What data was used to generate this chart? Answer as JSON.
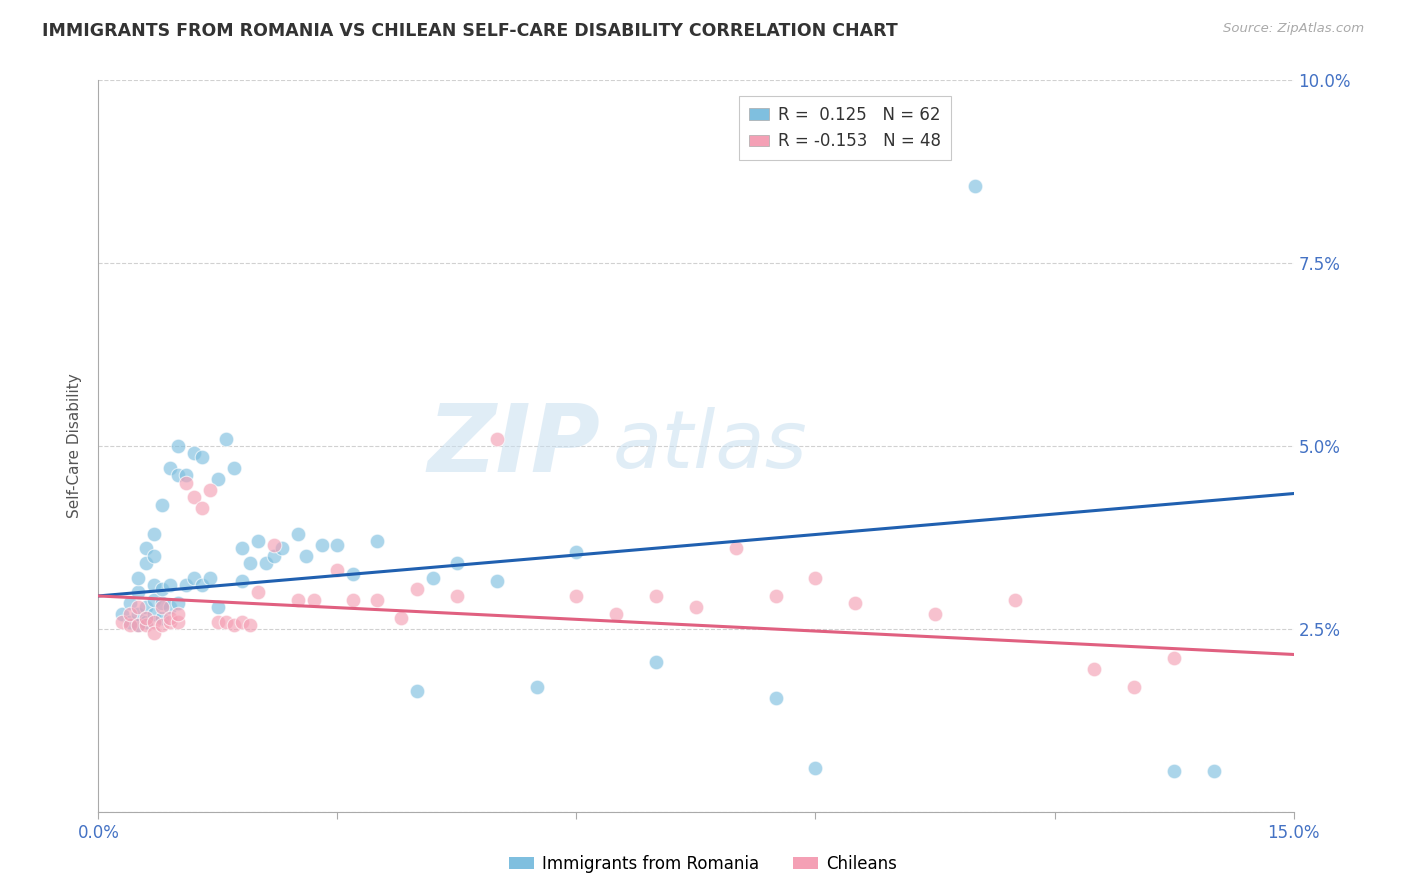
{
  "title": "IMMIGRANTS FROM ROMANIA VS CHILEAN SELF-CARE DISABILITY CORRELATION CHART",
  "source": "Source: ZipAtlas.com",
  "ylabel": "Self-Care Disability",
  "x_min": 0.0,
  "x_max": 0.15,
  "y_min": 0.0,
  "y_max": 0.1,
  "x_ticks": [
    0.0,
    0.03,
    0.06,
    0.09,
    0.12,
    0.15
  ],
  "y_ticks": [
    0.0,
    0.025,
    0.05,
    0.075,
    0.1
  ],
  "y_tick_labels": [
    "",
    "2.5%",
    "5.0%",
    "7.5%",
    "10.0%"
  ],
  "color_blue": "#7fbfdf",
  "color_pink": "#f4a0b5",
  "line_color_blue": "#2060b0",
  "line_color_pink": "#e06080",
  "grid_color": "#cccccc",
  "blue_line_y_start": 0.0295,
  "blue_line_y_end": 0.0435,
  "pink_line_y_start": 0.0295,
  "pink_line_y_end": 0.0215,
  "blue_x": [
    0.003,
    0.004,
    0.004,
    0.005,
    0.005,
    0.005,
    0.005,
    0.006,
    0.006,
    0.006,
    0.006,
    0.007,
    0.007,
    0.007,
    0.007,
    0.007,
    0.008,
    0.008,
    0.008,
    0.008,
    0.009,
    0.009,
    0.009,
    0.01,
    0.01,
    0.01,
    0.011,
    0.011,
    0.012,
    0.012,
    0.013,
    0.013,
    0.014,
    0.015,
    0.015,
    0.016,
    0.017,
    0.018,
    0.018,
    0.019,
    0.02,
    0.021,
    0.022,
    0.023,
    0.025,
    0.026,
    0.028,
    0.03,
    0.032,
    0.035,
    0.04,
    0.042,
    0.045,
    0.05,
    0.055,
    0.06,
    0.07,
    0.085,
    0.09,
    0.11,
    0.135,
    0.14
  ],
  "blue_y": [
    0.027,
    0.026,
    0.0285,
    0.0255,
    0.027,
    0.03,
    0.032,
    0.026,
    0.028,
    0.034,
    0.036,
    0.027,
    0.029,
    0.031,
    0.035,
    0.038,
    0.0265,
    0.0285,
    0.0305,
    0.042,
    0.028,
    0.031,
    0.047,
    0.0285,
    0.046,
    0.05,
    0.031,
    0.046,
    0.032,
    0.049,
    0.031,
    0.0485,
    0.032,
    0.028,
    0.0455,
    0.051,
    0.047,
    0.0315,
    0.036,
    0.034,
    0.037,
    0.034,
    0.035,
    0.036,
    0.038,
    0.035,
    0.0365,
    0.0365,
    0.0325,
    0.037,
    0.0165,
    0.032,
    0.034,
    0.0315,
    0.017,
    0.0355,
    0.0205,
    0.0155,
    0.006,
    0.0855,
    0.0055,
    0.0055
  ],
  "pink_x": [
    0.003,
    0.004,
    0.004,
    0.005,
    0.005,
    0.006,
    0.006,
    0.007,
    0.007,
    0.008,
    0.008,
    0.009,
    0.009,
    0.01,
    0.01,
    0.011,
    0.012,
    0.013,
    0.014,
    0.015,
    0.016,
    0.017,
    0.018,
    0.019,
    0.02,
    0.022,
    0.025,
    0.027,
    0.03,
    0.032,
    0.035,
    0.038,
    0.04,
    0.045,
    0.05,
    0.06,
    0.065,
    0.07,
    0.075,
    0.08,
    0.085,
    0.09,
    0.095,
    0.105,
    0.115,
    0.125,
    0.13,
    0.135
  ],
  "pink_y": [
    0.026,
    0.0255,
    0.027,
    0.0255,
    0.028,
    0.0255,
    0.0265,
    0.026,
    0.0245,
    0.0255,
    0.028,
    0.026,
    0.0265,
    0.026,
    0.027,
    0.045,
    0.043,
    0.0415,
    0.044,
    0.026,
    0.026,
    0.0255,
    0.026,
    0.0255,
    0.03,
    0.0365,
    0.029,
    0.029,
    0.033,
    0.029,
    0.029,
    0.0265,
    0.0305,
    0.0295,
    0.051,
    0.0295,
    0.027,
    0.0295,
    0.028,
    0.036,
    0.0295,
    0.032,
    0.0285,
    0.027,
    0.029,
    0.0195,
    0.017,
    0.021
  ]
}
